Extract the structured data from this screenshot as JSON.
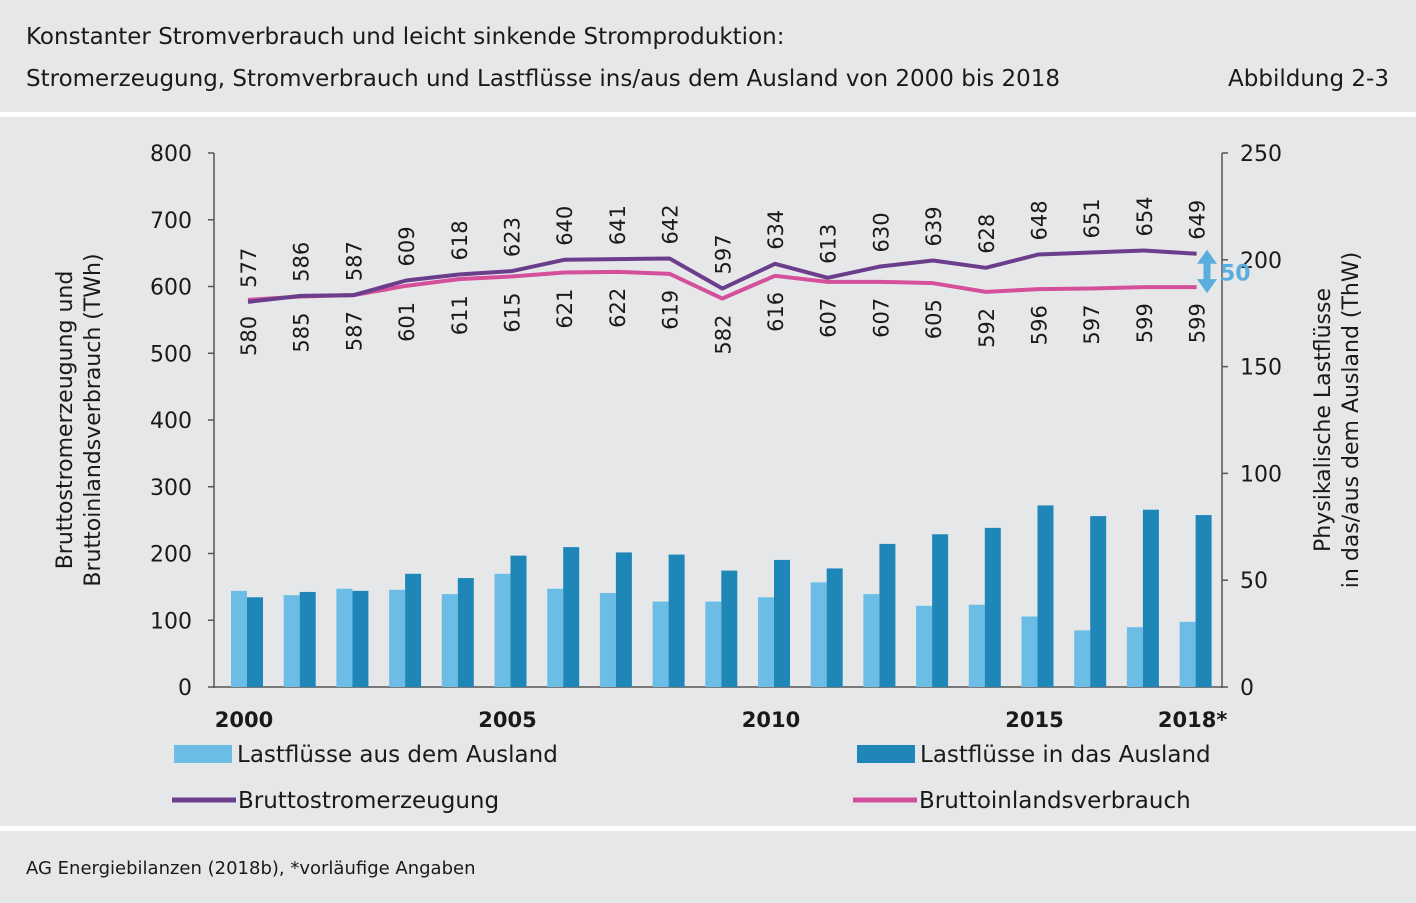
{
  "header": {
    "title": "Konstanter Stromverbrauch und leicht sinkende Stromproduktion:",
    "subtitle": "Stromerzeugung, Stromverbrauch und Lastflüsse ins/aus dem Ausland von 2000 bis 2018",
    "figure_no": "Abbildung 2-3"
  },
  "footer": {
    "source": "AG Energiebilanzen (2018b), *vorläufige Angaben"
  },
  "chart_data": {
    "type": "bar",
    "categories": [
      "2000",
      "2001",
      "2002",
      "2003",
      "2004",
      "2005",
      "2006",
      "2007",
      "2008",
      "2009",
      "2010",
      "2011",
      "2012",
      "2013",
      "2014",
      "2015",
      "2016",
      "2017",
      "2018*"
    ],
    "x_tick_labels": [
      "2000",
      "2005",
      "2010",
      "2015",
      "2018*"
    ],
    "ylabel_left": [
      "Bruttostromerzeugung und",
      "Bruttoinlandsverbrauch (TWh)"
    ],
    "ylabel_right": [
      "Physikalische Lastflüsse",
      "in das/aus dem Ausland (ThW)"
    ],
    "ylim_left": [
      0,
      800
    ],
    "ylim_right": [
      0,
      250
    ],
    "yticks_left": [
      "0",
      "100",
      "200",
      "300",
      "400",
      "500",
      "600",
      "700",
      "800"
    ],
    "yticks_right": [
      "0",
      "50",
      "100",
      "150",
      "200",
      "250"
    ],
    "series": [
      {
        "name": "Lastflüsse aus dem Ausland",
        "axis": "right",
        "kind": "bar",
        "color": "#6bbde5",
        "values": [
          45,
          43,
          46,
          45.5,
          43.5,
          53,
          46,
          44,
          40,
          40,
          42,
          49,
          43.5,
          38,
          38.5,
          33,
          26.5,
          28,
          30.5
        ]
      },
      {
        "name": "Lastflüsse in das Ausland",
        "axis": "right",
        "kind": "bar",
        "color": "#1e87b8",
        "values": [
          42,
          44.5,
          45,
          53,
          51,
          61.5,
          65.5,
          63,
          62,
          54.5,
          59.5,
          55.5,
          67,
          71.5,
          74.5,
          85,
          80,
          83,
          80.5
        ]
      },
      {
        "name": "Bruttostromerzeugung",
        "axis": "left",
        "kind": "line",
        "color": "#6b3e8c",
        "values": [
          577,
          586,
          587,
          609,
          618,
          623,
          640,
          641,
          642,
          597,
          634,
          613,
          630,
          639,
          628,
          648,
          651,
          654,
          649
        ]
      },
      {
        "name": "Bruttoinlandsverbrauch",
        "axis": "left",
        "kind": "line",
        "color": "#d4509a",
        "values": [
          580,
          585,
          587,
          601,
          611,
          615,
          621,
          622,
          619,
          582,
          616,
          607,
          607,
          605,
          592,
          596,
          597,
          599,
          599
        ]
      }
    ],
    "gap_annotation": "50",
    "legend_placement": "bottom",
    "grid": false
  }
}
